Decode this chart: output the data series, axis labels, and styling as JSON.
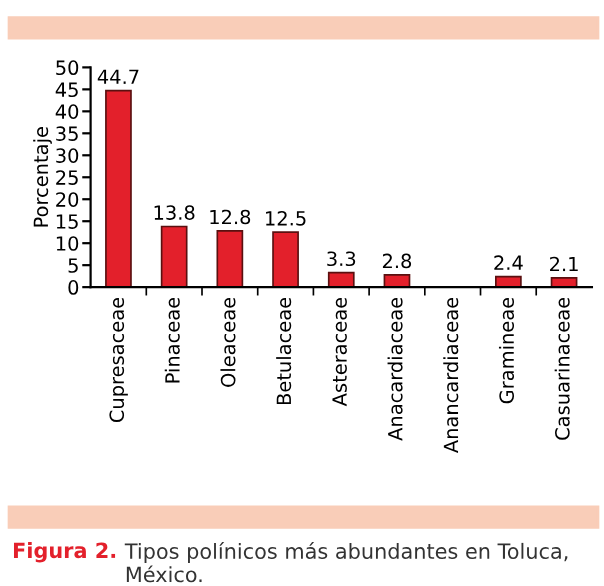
{
  "chart_data": {
    "type": "bar",
    "ylabel": "Porcentaje",
    "categories": [
      "Cupresaceae",
      "Pinaceae",
      "Oleaceae",
      "Betulaceae",
      "Asteraceae",
      "Anacardiaceae",
      "Anancardiaceae",
      "Gramineae",
      "Casuarinaceae"
    ],
    "values": [
      44.7,
      13.8,
      12.8,
      12.5,
      3.3,
      2.8,
      null,
      2.4,
      2.1
    ],
    "color": "#e3202b",
    "ylim": [
      0,
      50
    ],
    "yticks": [
      0,
      5,
      10,
      15,
      20,
      25,
      30,
      35,
      40,
      45,
      50
    ],
    "grid": false,
    "data_labels": true,
    "annotations": [
      "Figura 2.",
      "Tipos polínicos más abundantes en Toluca, México."
    ]
  }
}
